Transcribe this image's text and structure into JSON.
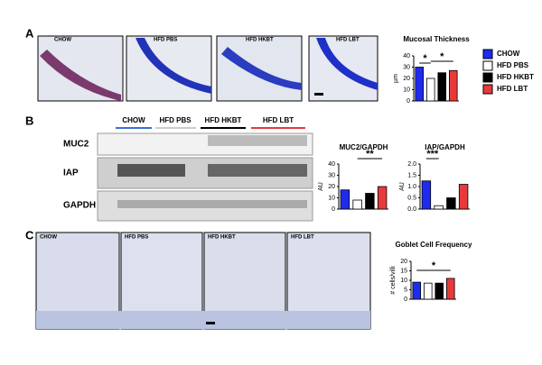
{
  "panels": {
    "A": {
      "letter": "A",
      "images": [
        "CHOW",
        "HFD PBS",
        "HFD HKBT",
        "HFD LBT"
      ]
    },
    "B": {
      "letter": "B",
      "groups": [
        "CHOW",
        "HFD PBS",
        "HFD HKBT",
        "HFD LBT"
      ],
      "rows": [
        "MUC2",
        "IAP",
        "GAPDH"
      ]
    },
    "C": {
      "letter": "C",
      "images": [
        "CHOW",
        "HFD PBS",
        "HFD HKBT",
        "HFD LBT"
      ]
    }
  },
  "chart_data": [
    {
      "type": "bar",
      "title": "Mucosal Thickness",
      "ylabel": "µm",
      "categories": [
        "CHOW",
        "HFD PBS",
        "HFD HKBT",
        "HFD LBT"
      ],
      "colors": [
        "#1f2bef",
        "#ffffff",
        "#000000",
        "#e83a3a"
      ],
      "values": [
        30,
        20,
        25,
        27
      ],
      "ylim": [
        0,
        40
      ],
      "yticks": [
        0,
        10,
        20,
        30,
        40
      ],
      "annotations": [
        "*",
        "*"
      ],
      "legend": "right"
    },
    {
      "type": "bar",
      "title": "MUC2/GAPDH",
      "ylabel": "AU",
      "colors": [
        "#1f2bef",
        "#ffffff",
        "#000000",
        "#e83a3a"
      ],
      "values": [
        17,
        8,
        14,
        20
      ],
      "ylim": [
        0,
        40
      ],
      "yticks": [
        0,
        10,
        20,
        30,
        40
      ],
      "annotations": [
        "**"
      ]
    },
    {
      "type": "bar",
      "title": "IAP/GAPDH",
      "ylabel": "AU",
      "colors": [
        "#1f2bef",
        "#ffffff",
        "#000000",
        "#e83a3a"
      ],
      "values": [
        1.25,
        0.15,
        0.5,
        1.1
      ],
      "ylim": [
        0,
        2
      ],
      "yticks": [
        {
          "value": 0,
          "label": "0.0"
        },
        {
          "value": 0.5,
          "label": "0.5"
        },
        {
          "value": 1,
          "label": "1.0"
        },
        {
          "value": 1.5,
          "label": "1.5"
        },
        {
          "value": 2,
          "label": "2.0"
        }
      ],
      "annotations": [
        "***"
      ]
    },
    {
      "type": "bar",
      "title": "Goblet Cell Frequency",
      "ylabel": "# cells/villi",
      "colors": [
        "#1f2bef",
        "#ffffff",
        "#000000",
        "#e83a3a"
      ],
      "values": [
        9,
        8.5,
        8.5,
        11
      ],
      "ylim": [
        0,
        20
      ],
      "yticks": [
        0,
        5,
        10,
        15,
        20
      ],
      "annotations": [
        "*"
      ]
    }
  ]
}
